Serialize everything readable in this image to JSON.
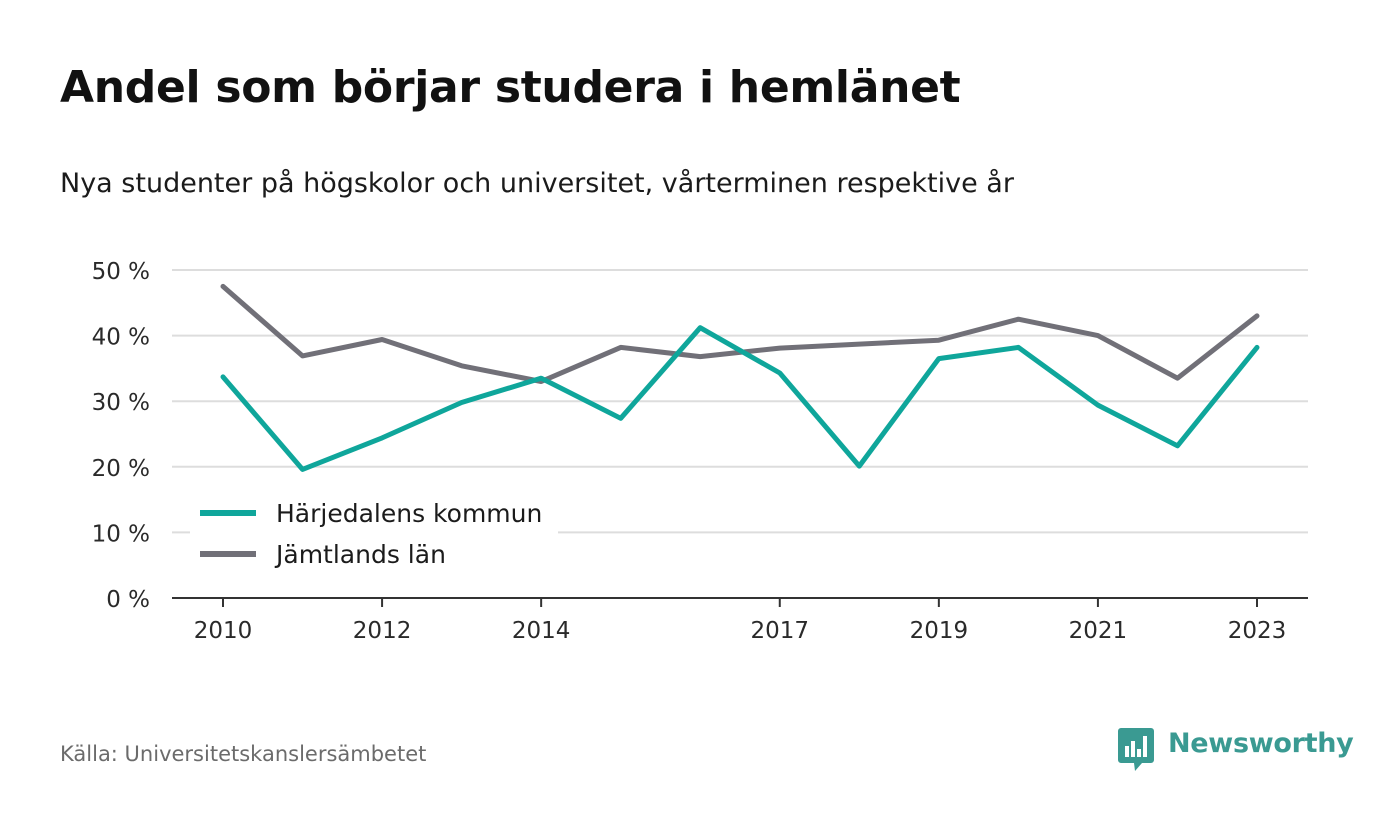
{
  "title": "Andel som börjar studera i hemlänet",
  "subtitle": "Nya studenter på högskolor och universitet, vårterminen respektive år",
  "source": "Källa: Universitetskanslersämbetet",
  "brand": "Newsworthy",
  "colors": {
    "harjedalen": "#0fa69b",
    "jamtland": "#717078",
    "grid": "#dddddd",
    "axis": "#333333",
    "brand": "#3a9a92"
  },
  "chart_data": {
    "type": "line",
    "x": [
      2010,
      2011,
      2012,
      2013,
      2014,
      2015,
      2016,
      2017,
      2018,
      2019,
      2020,
      2021,
      2022,
      2023
    ],
    "xticks": [
      2010,
      2012,
      2014,
      2017,
      2019,
      2021,
      2023
    ],
    "xtick_labels": [
      "2010",
      "2012",
      "2014",
      "2017",
      "2019",
      "2021",
      "2023"
    ],
    "yticks": [
      0,
      10,
      20,
      30,
      40,
      50
    ],
    "ytick_labels": [
      "0 %",
      "10 %",
      "20 %",
      "30 %",
      "40 %",
      "50 %"
    ],
    "ylim": [
      0,
      50
    ],
    "grid": true,
    "legend_position": "bottom-left",
    "series": [
      {
        "name": "Härjedalens kommun",
        "color": "#0fa69b",
        "values": [
          33.7,
          19.6,
          24.4,
          29.8,
          33.5,
          27.4,
          41.2,
          34.3,
          20.1,
          36.5,
          38.2,
          29.4,
          23.2,
          38.2
        ]
      },
      {
        "name": "Jämtlands län",
        "color": "#717078",
        "values": [
          47.5,
          36.9,
          39.4,
          35.4,
          33.0,
          38.2,
          36.8,
          38.1,
          38.7,
          39.3,
          42.5,
          40.0,
          33.5,
          43.0
        ]
      }
    ]
  }
}
